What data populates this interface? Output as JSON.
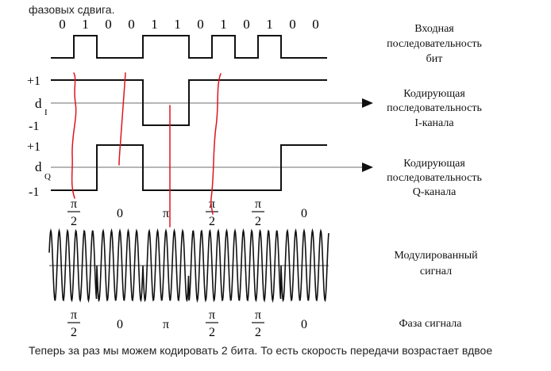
{
  "page": {
    "top_caption": "фазовых сдвига.",
    "bottom_caption": "Теперь за раз мы можем кодировать 2 бита. То есть скорость передачи возрастает вдвое"
  },
  "bits": [
    "0",
    "1",
    "0",
    "0",
    "1",
    "1",
    "0",
    "1",
    "0",
    "1",
    "0",
    "0"
  ],
  "labels": {
    "input_sequence": [
      "Входная",
      "последовательность",
      "бит"
    ],
    "i_channel": [
      "Кодирующая",
      "последовательность",
      "I-канала"
    ],
    "q_channel": [
      "Кодирующая",
      "последовательность",
      "Q-канала"
    ],
    "modulated": [
      "Модулированный",
      "сигнал"
    ],
    "phase": "Фаза сигнала"
  },
  "levels": {
    "plus_one": "+1",
    "minus_one": "-1",
    "d": "d",
    "i_sub": "I",
    "q_sub": "Q"
  },
  "i_sequence": [
    1,
    1,
    1,
    1,
    -1,
    -1,
    1,
    1,
    1,
    1,
    1,
    1
  ],
  "q_sequence": [
    -1,
    -1,
    1,
    1,
    -1,
    -1,
    -1,
    -1,
    -1,
    -1,
    1,
    1
  ],
  "phases": [
    {
      "kind": "fraction",
      "num": "π",
      "den": "2"
    },
    {
      "kind": "text",
      "text": "0"
    },
    {
      "kind": "text",
      "text": "π"
    },
    {
      "kind": "fraction",
      "num": "π",
      "den": "2"
    },
    {
      "kind": "fraction",
      "num": "π",
      "den": "2"
    },
    {
      "kind": "text",
      "text": "0"
    }
  ],
  "colors": {
    "ink": "#111111",
    "axis": "#6e6e6e",
    "annotation": "#e0141e"
  }
}
